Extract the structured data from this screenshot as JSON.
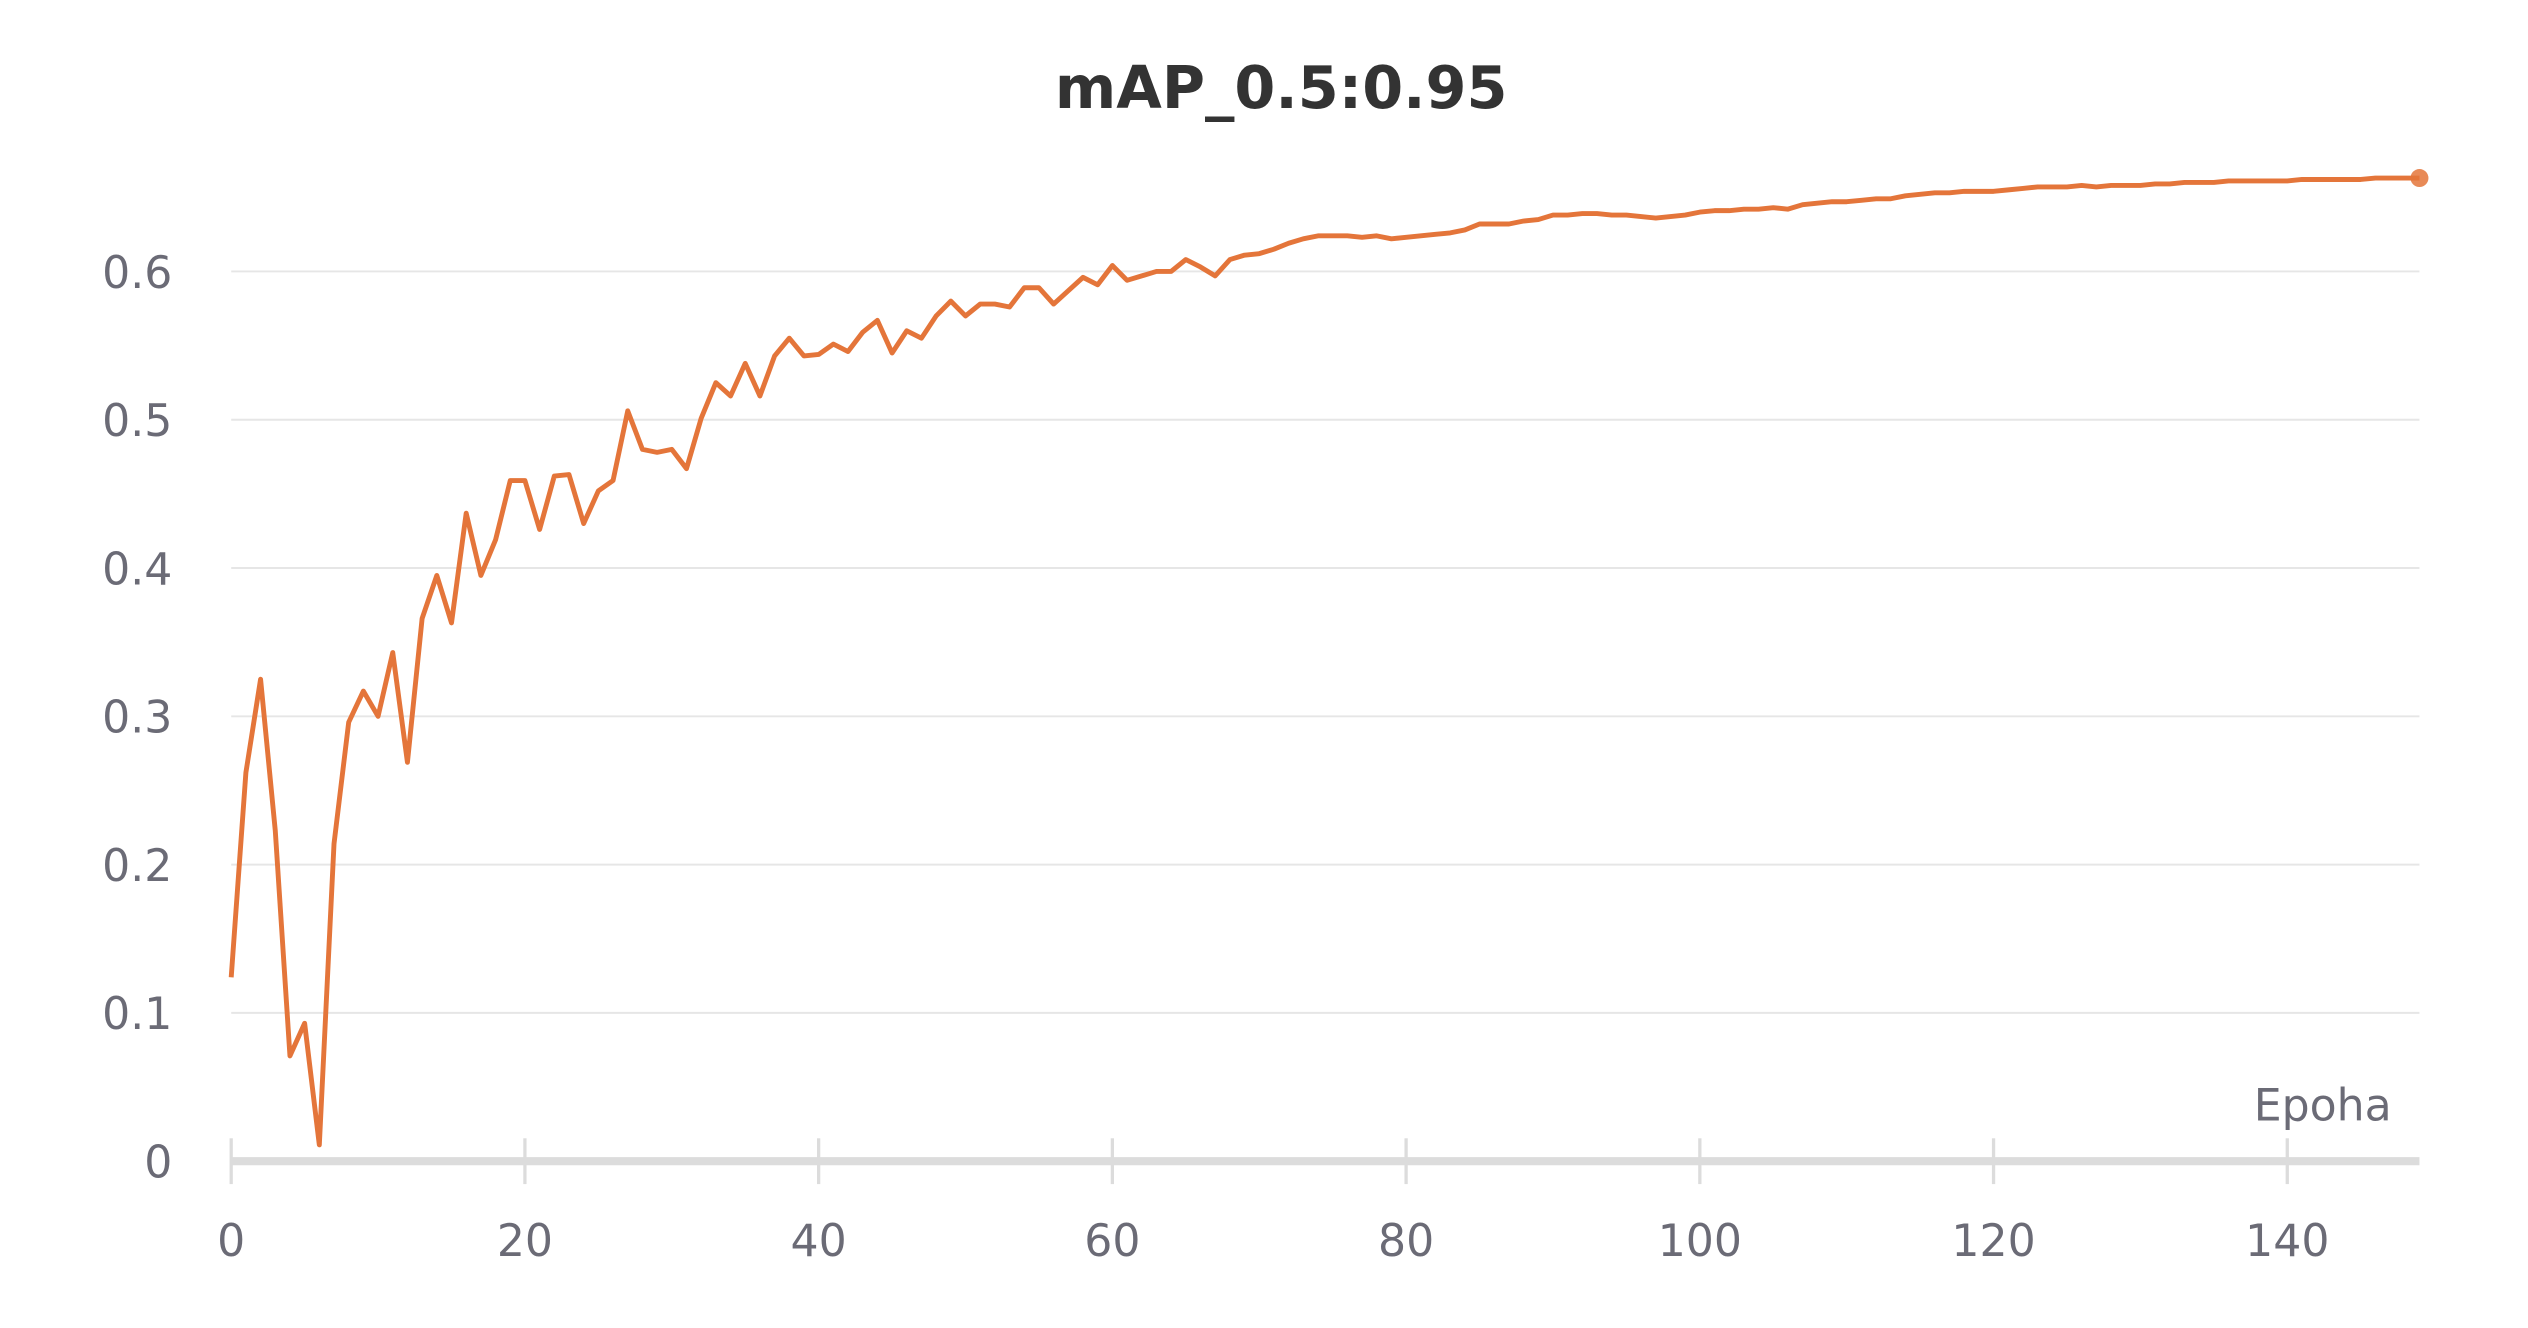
{
  "chart_data": {
    "type": "line",
    "title": "mAP_0.5:0.95",
    "x_label": "Epoha",
    "color": "#e4753a",
    "grid": true,
    "xlim": [
      0,
      149
    ],
    "ylim": [
      0,
      0.67
    ],
    "xticks": [
      0,
      20,
      40,
      60,
      80,
      100,
      120,
      140
    ],
    "yticks": [
      0,
      0.1,
      0.2,
      0.3,
      0.4,
      0.5,
      0.6
    ],
    "x": [
      0,
      1,
      2,
      3,
      4,
      5,
      6,
      7,
      8,
      9,
      10,
      11,
      12,
      13,
      14,
      15,
      16,
      17,
      18,
      19,
      20,
      21,
      22,
      23,
      24,
      25,
      26,
      27,
      28,
      29,
      30,
      31,
      32,
      33,
      34,
      35,
      36,
      37,
      38,
      39,
      40,
      41,
      42,
      43,
      44,
      45,
      46,
      47,
      48,
      49,
      50,
      51,
      52,
      53,
      54,
      55,
      56,
      57,
      58,
      59,
      60,
      61,
      62,
      63,
      64,
      65,
      66,
      67,
      68,
      69,
      70,
      71,
      72,
      73,
      74,
      75,
      76,
      77,
      78,
      79,
      80,
      81,
      82,
      83,
      84,
      85,
      86,
      87,
      88,
      89,
      90,
      91,
      92,
      93,
      94,
      95,
      96,
      97,
      98,
      99,
      100,
      101,
      102,
      103,
      104,
      105,
      106,
      107,
      108,
      109,
      110,
      111,
      112,
      113,
      114,
      115,
      116,
      117,
      118,
      119,
      120,
      121,
      122,
      123,
      124,
      125,
      126,
      127,
      128,
      129,
      130,
      131,
      132,
      133,
      134,
      135,
      136,
      137,
      138,
      139,
      140,
      141,
      142,
      143,
      144,
      145,
      146,
      147,
      148,
      149
    ],
    "values": [
      0.124,
      0.262,
      0.325,
      0.223,
      0.071,
      0.093,
      0.011,
      0.214,
      0.296,
      0.317,
      0.3,
      0.343,
      0.269,
      0.366,
      0.395,
      0.363,
      0.437,
      0.395,
      0.419,
      0.459,
      0.459,
      0.426,
      0.462,
      0.463,
      0.43,
      0.452,
      0.459,
      0.506,
      0.48,
      0.478,
      0.48,
      0.467,
      0.501,
      0.525,
      0.516,
      0.538,
      0.516,
      0.543,
      0.555,
      0.543,
      0.544,
      0.551,
      0.546,
      0.559,
      0.567,
      0.545,
      0.56,
      0.555,
      0.57,
      0.58,
      0.57,
      0.578,
      0.578,
      0.576,
      0.589,
      0.589,
      0.578,
      0.587,
      0.596,
      0.591,
      0.604,
      0.594,
      0.597,
      0.6,
      0.6,
      0.608,
      0.603,
      0.597,
      0.608,
      0.611,
      0.612,
      0.615,
      0.619,
      0.622,
      0.624,
      0.624,
      0.624,
      0.623,
      0.624,
      0.622,
      0.623,
      0.624,
      0.625,
      0.626,
      0.628,
      0.632,
      0.632,
      0.632,
      0.634,
      0.635,
      0.638,
      0.638,
      0.639,
      0.639,
      0.638,
      0.638,
      0.637,
      0.636,
      0.637,
      0.638,
      0.64,
      0.641,
      0.641,
      0.642,
      0.642,
      0.643,
      0.642,
      0.645,
      0.646,
      0.647,
      0.647,
      0.648,
      0.649,
      0.649,
      0.651,
      0.652,
      0.653,
      0.653,
      0.654,
      0.654,
      0.654,
      0.655,
      0.656,
      0.657,
      0.657,
      0.657,
      0.658,
      0.657,
      0.658,
      0.658,
      0.658,
      0.659,
      0.659,
      0.66,
      0.66,
      0.66,
      0.661,
      0.661,
      0.661,
      0.661,
      0.661,
      0.662,
      0.662,
      0.662,
      0.662,
      0.662,
      0.663,
      0.663,
      0.663,
      0.663
    ]
  }
}
